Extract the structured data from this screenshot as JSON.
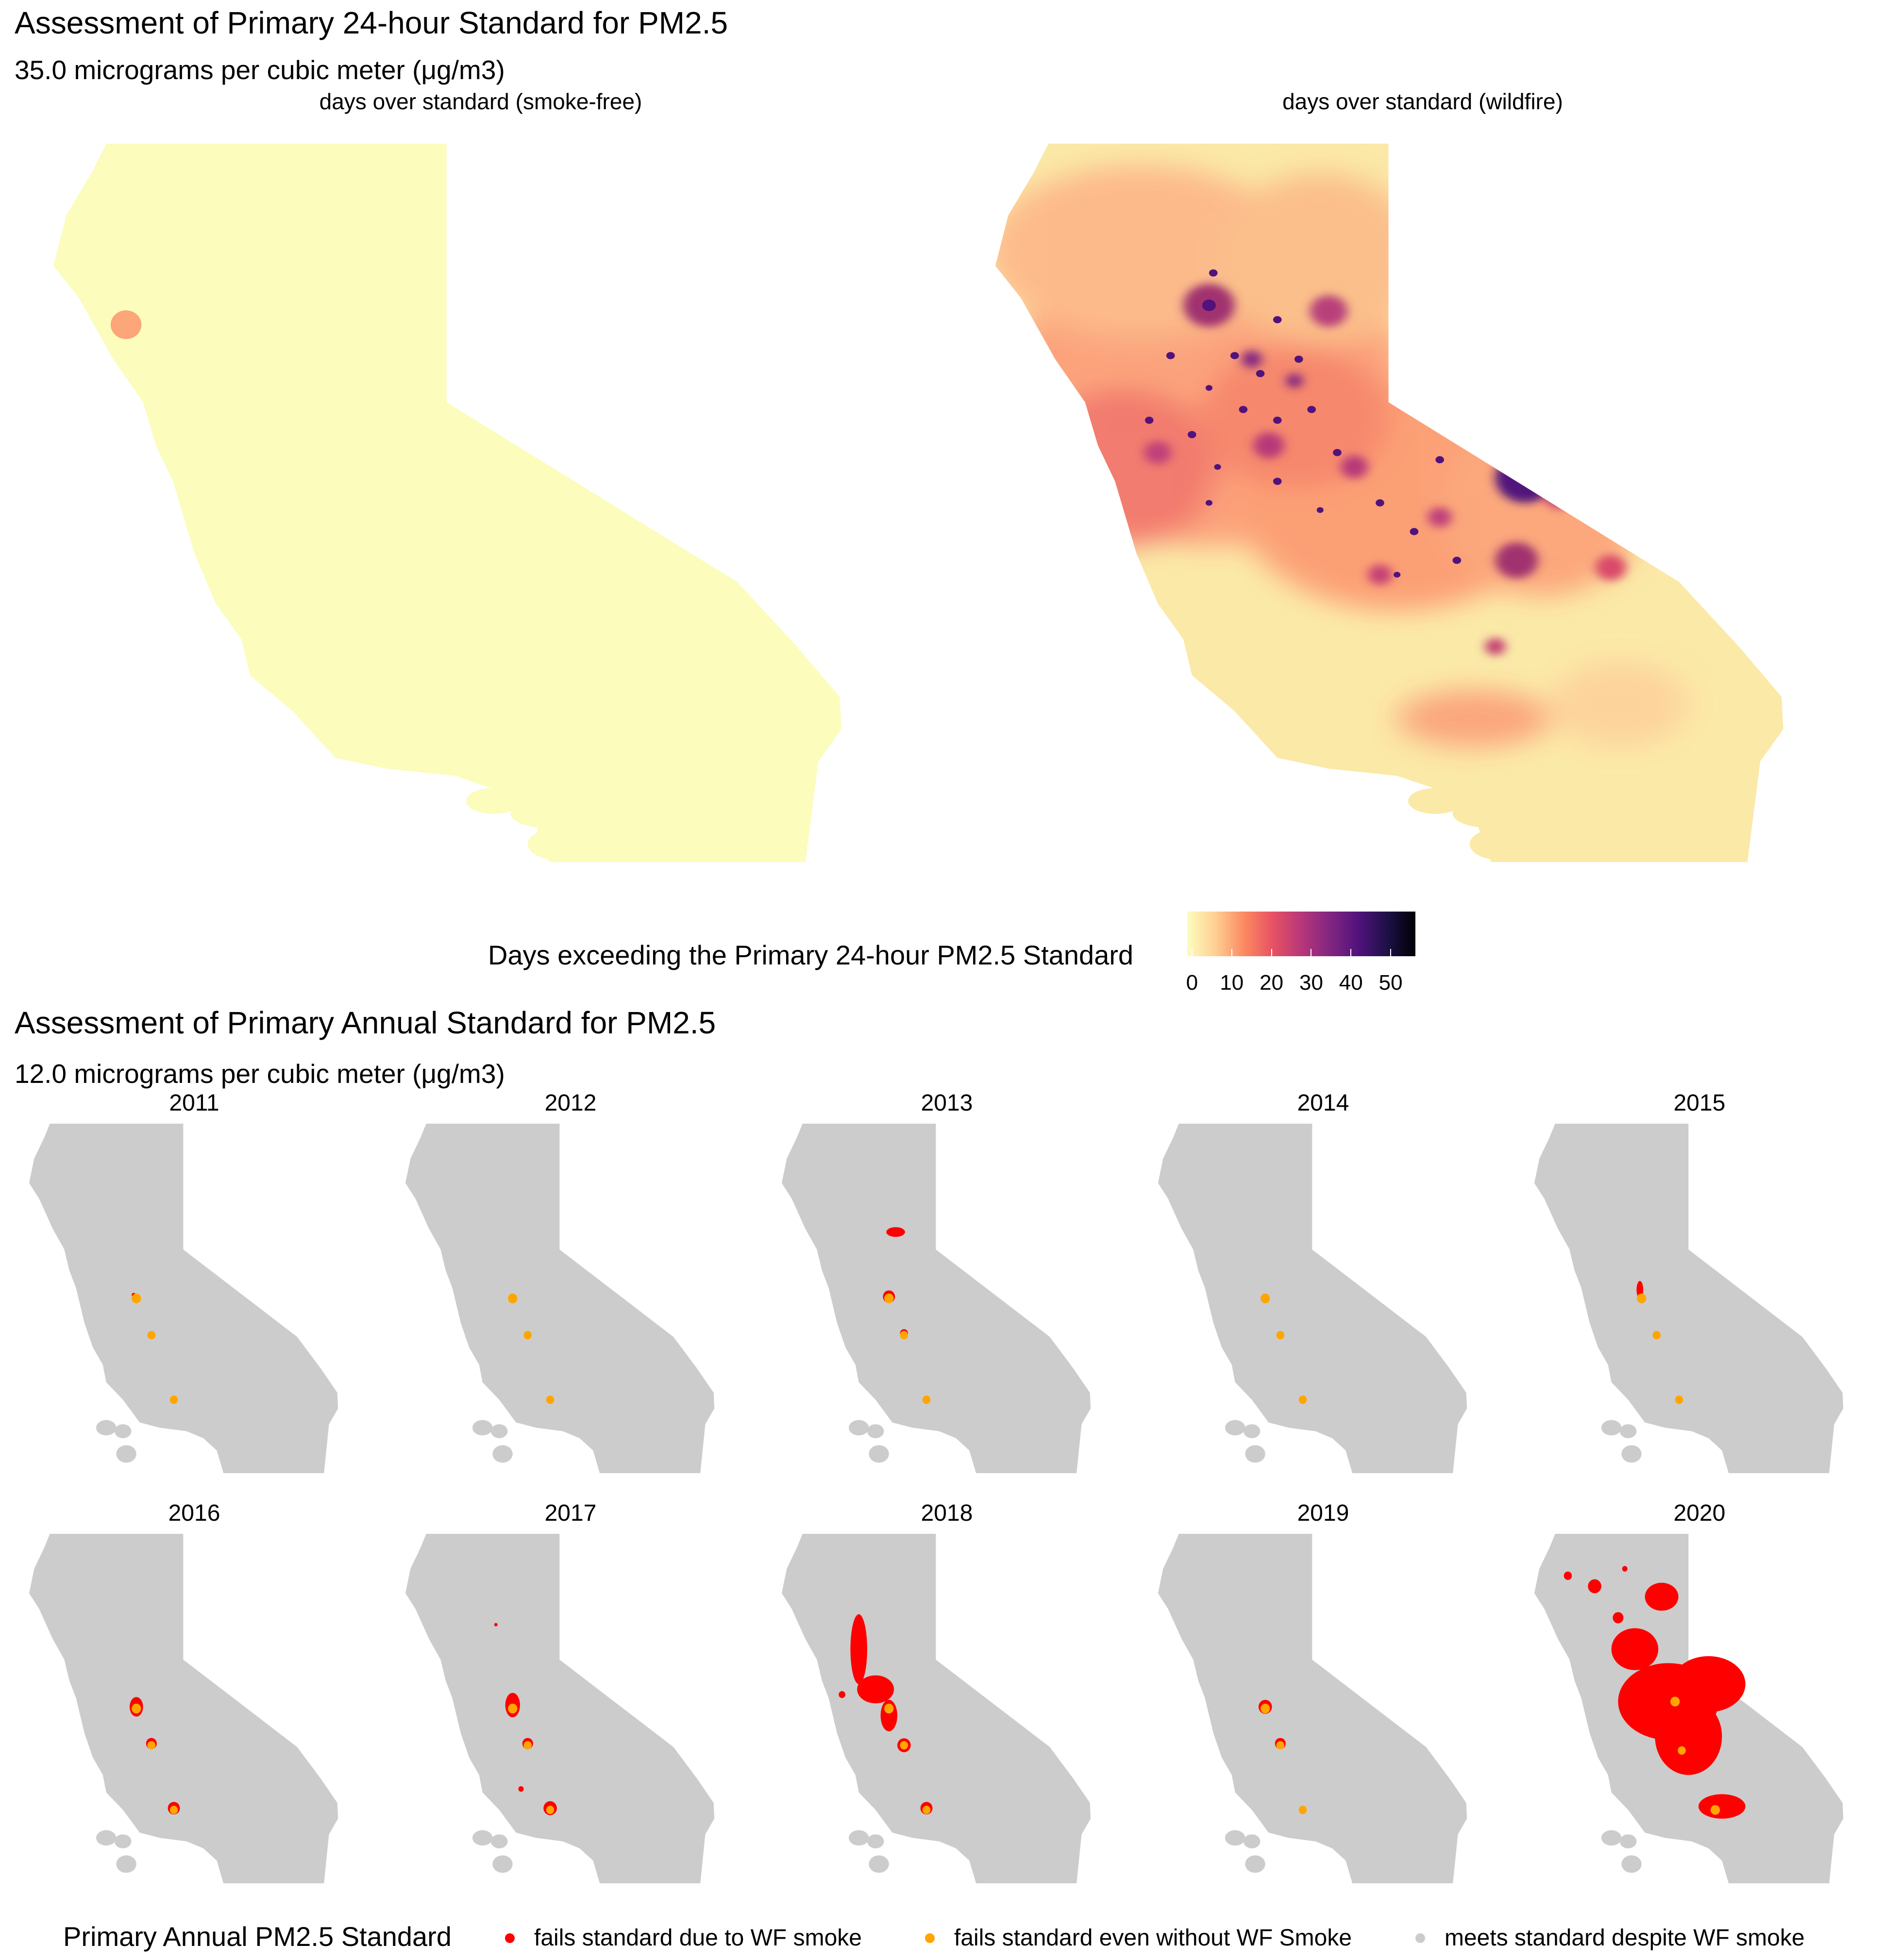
{
  "top": {
    "title": "Assessment of Primary 24-hour Standard for PM2.5",
    "subtitle": "35.0 micrograms per cubic meter (μg/m3)",
    "facets": [
      {
        "label": "days over standard (smoke-free)"
      },
      {
        "label": "days over standard (wildfire)"
      }
    ],
    "legend": {
      "title": "Days exceeding the Primary 24-hour PM2.5 Standard",
      "ticks": [
        "0",
        "10",
        "20",
        "30",
        "40",
        "50"
      ],
      "colors": [
        "#fcfdbf",
        "#fecf92",
        "#fc8961",
        "#e75263",
        "#b73779",
        "#822681",
        "#51127c",
        "#1d1147",
        "#000004"
      ]
    }
  },
  "bottom": {
    "title": "Assessment of Primary Annual Standard for PM2.5",
    "subtitle": "12.0 micrograms per cubic meter (μg/m3)",
    "years": [
      "2011",
      "2012",
      "2013",
      "2014",
      "2015",
      "2016",
      "2017",
      "2018",
      "2019",
      "2020"
    ],
    "legend": {
      "title": "Primary Annual PM2.5 Standard",
      "items": [
        {
          "label": "fails standard due to WF smoke",
          "color": "#ff0000"
        },
        {
          "label": "fails standard even without WF Smoke",
          "color": "#ffa500"
        },
        {
          "label": "meets standard despite WF smoke",
          "color": "#cccccc"
        }
      ]
    }
  },
  "map_colors": {
    "smoke_free_fill": "#fcfcbc",
    "wildfire_base": "#fbe9a8",
    "small_map_fill": "#cccccc"
  }
}
